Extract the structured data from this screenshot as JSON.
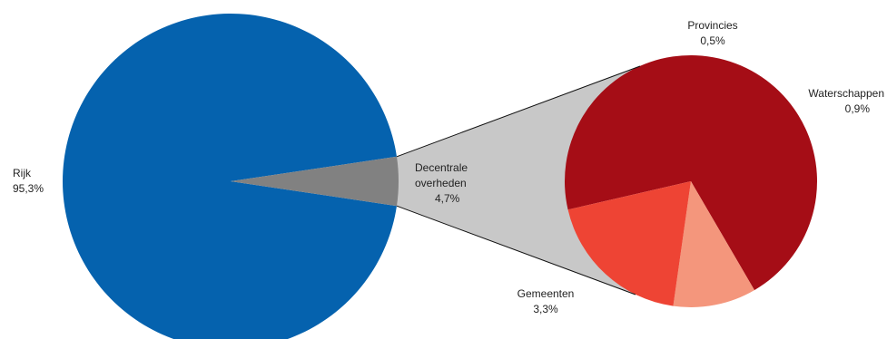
{
  "chart_data": {
    "type": "pie-of-pie",
    "main_pie": {
      "slices": [
        {
          "label": "Rijk",
          "value": 95.3,
          "display": "95,3%",
          "color": "#0562ae"
        },
        {
          "label": "Decentrale overheden",
          "value": 4.7,
          "display": "4,7%",
          "color": "#818181"
        }
      ]
    },
    "sub_pie": {
      "slices": [
        {
          "label": "Gemeenten",
          "value": 3.3,
          "display": "3,3%",
          "color": "#a50d16"
        },
        {
          "label": "Provincies",
          "value": 0.5,
          "display": "0,5%",
          "color": "#f4967c"
        },
        {
          "label": "Waterschappen",
          "value": 0.9,
          "display": "0,9%",
          "color": "#ee4434"
        }
      ]
    },
    "connector_color": "#c8c8c8",
    "legend": "none",
    "grid": false
  }
}
